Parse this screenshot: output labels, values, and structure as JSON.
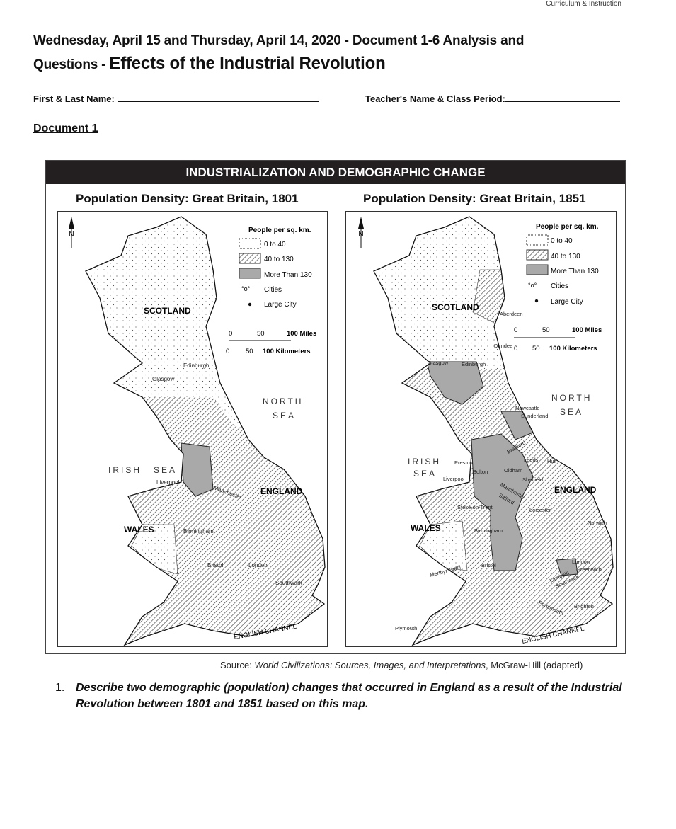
{
  "header": {
    "note": "Curriculum & Instruction",
    "title_line1": "Wednesday, April 15 and Thursday, April 14, 2020 - Document 1-6 Analysis and",
    "title_line2_prefix": "Questions - ",
    "title_line2_main": "Effects of the Industrial Revolution"
  },
  "form": {
    "name_label": "First & Last Name:",
    "teacher_label": "Teacher's Name & Class Period:"
  },
  "document_label": "Document 1",
  "figure": {
    "title": "INDUSTRIALIZATION AND DEMOGRAPHIC CHANGE",
    "legend": {
      "heading": "People per sq. km.",
      "items": [
        "0 to 40",
        "40 to 130",
        "More Than 130",
        "Cities",
        "Large City"
      ]
    },
    "scale": {
      "miles": [
        "0",
        "50",
        "100 Miles"
      ],
      "km": [
        "0",
        "50",
        "100 Kilometers"
      ]
    },
    "north": "N",
    "maps": [
      {
        "title": "Population Density: Great Britain, 1801",
        "regions": {
          "scotland": "SCOTLAND",
          "england": "ENGLAND",
          "wales": "WALES",
          "irish_sea": [
            "IRISH",
            "SEA"
          ],
          "north_sea": [
            "NORTH",
            "SEA"
          ],
          "channel": "ENGLISH CHANNEL"
        },
        "cities": [
          "Edinburgh",
          "Glasgow",
          "Liverpool",
          "Manchester",
          "Birmingham",
          "Bristol",
          "London",
          "Southwark"
        ]
      },
      {
        "title": "Population Density: Great Britain, 1851",
        "regions": {
          "scotland": "SCOTLAND",
          "england": "ENGLAND",
          "wales": "WALES",
          "irish_sea": [
            "IRISH",
            "SEA"
          ],
          "north_sea": [
            "NORTH",
            "SEA"
          ],
          "channel": "ENGLISH CHANNEL"
        },
        "cities": [
          "Aberdeen",
          "Dundee",
          "Glasgow",
          "Edinburgh",
          "Newcastle",
          "Sunderland",
          "Bradford",
          "Leeds",
          "Hull",
          "Preston",
          "Bolton",
          "Oldham",
          "Liverpool",
          "Sheffield",
          "Manchester",
          "Salford",
          "Stoke-on-Trent",
          "Leicester",
          "Norwich",
          "Birmingham",
          "Bristol",
          "Merthyr Tydfil",
          "London",
          "Greenwich",
          "Lambeth",
          "Southwark",
          "Brighton",
          "Portsmouth",
          "Plymouth"
        ]
      }
    ],
    "colors": {
      "dense": "#a9a9a9",
      "bar": "#231f20"
    }
  },
  "source": {
    "prefix": "Source: ",
    "work": "World Civilizations: Sources, Images, and Interpretations",
    "suffix": ", McGraw-Hill (adapted)"
  },
  "questions": [
    {
      "number": "1.",
      "text": "Describe two demographic (population) changes that occurred in England as a result of the Industrial Revolution between 1801 and 1851 based on this map."
    }
  ]
}
